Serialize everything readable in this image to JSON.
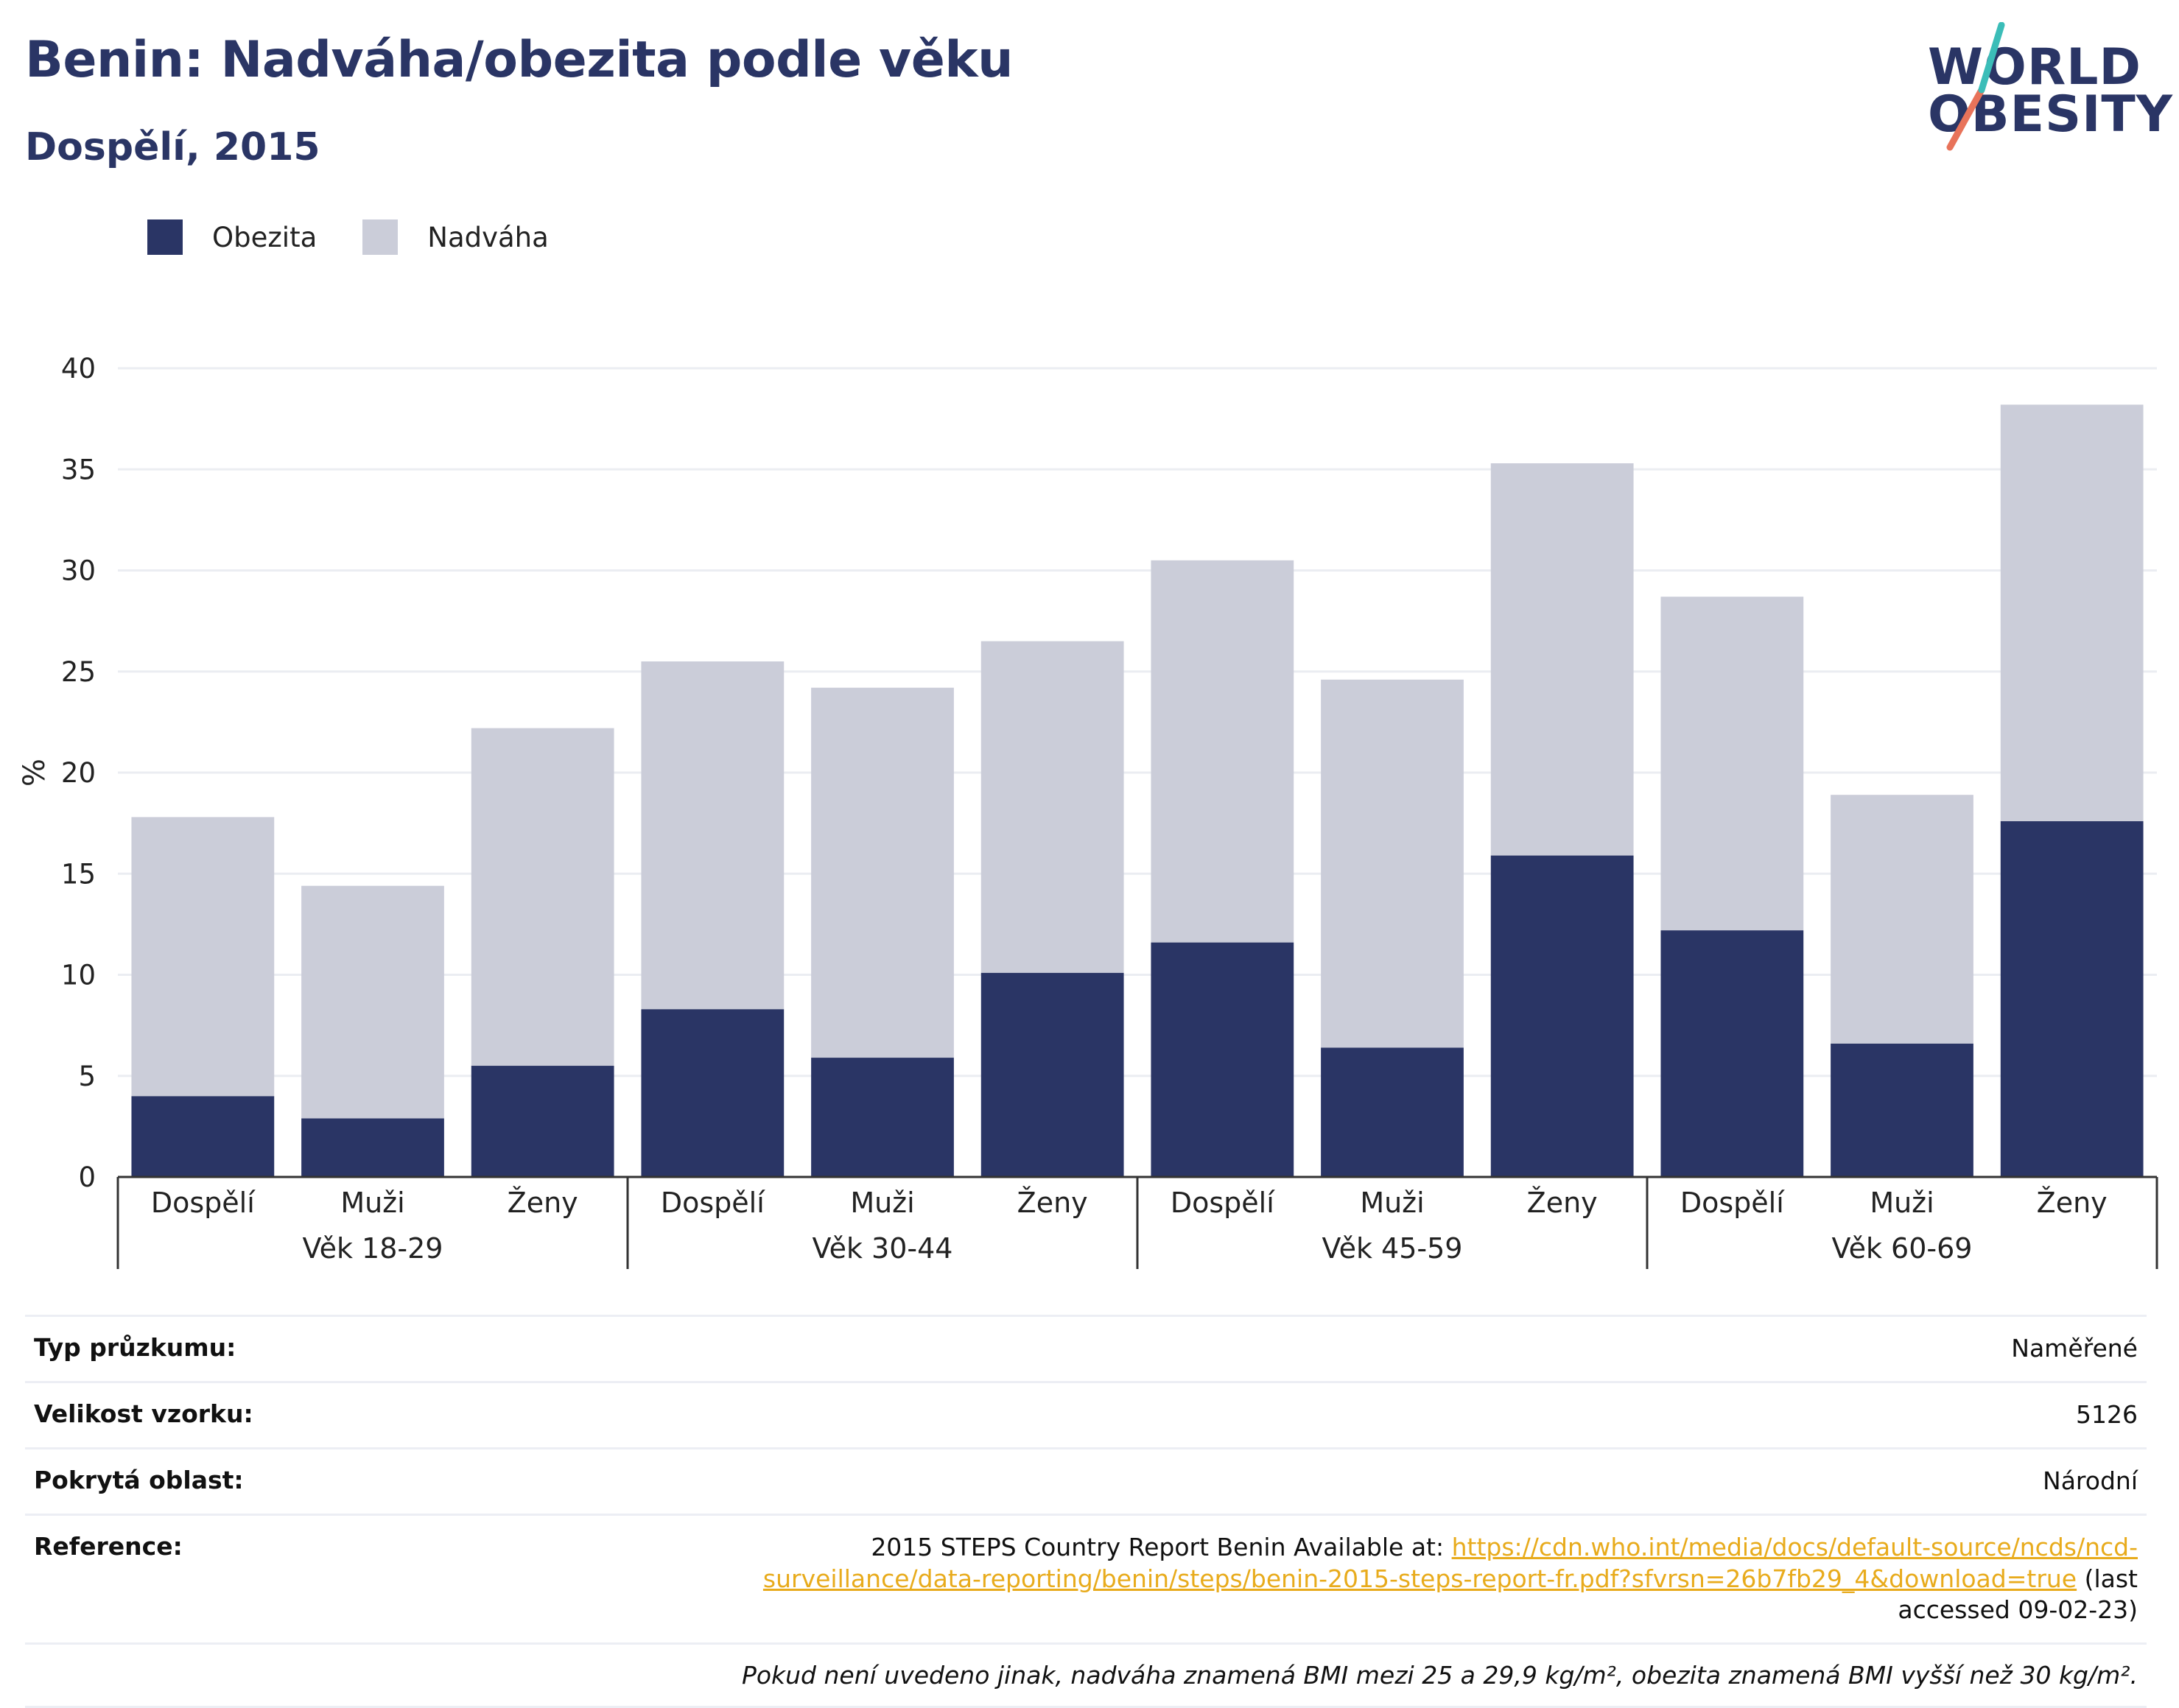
{
  "header": {
    "title": "Benin: Nadváha/obezita podle věku",
    "subtitle": "Dospělí, 2015"
  },
  "logo": {
    "line1": "WORLD",
    "line2": "OBESITY"
  },
  "legend": {
    "items": [
      {
        "label": "Obezita",
        "color": "#2a3565"
      },
      {
        "label": "Nadváha",
        "color": "#cbcdd9"
      }
    ]
  },
  "chart_data": {
    "type": "bar",
    "stacked": true,
    "ylabel": "%",
    "ylim": [
      0,
      40
    ],
    "yticks": [
      0,
      5,
      10,
      15,
      20,
      25,
      30,
      35,
      40
    ],
    "grid": true,
    "legend_position": "top-left",
    "groups": [
      "Věk 18-29",
      "Věk 30-44",
      "Věk 45-59",
      "Věk 60-69"
    ],
    "categories": [
      "Dospělí",
      "Muži",
      "Ženy",
      "Dospělí",
      "Muži",
      "Ženy",
      "Dospělí",
      "Muži",
      "Ženy",
      "Dospělí",
      "Muži",
      "Ženy"
    ],
    "series": [
      {
        "name": "Obezita",
        "color": "#2a3565",
        "values": [
          4.0,
          2.9,
          5.5,
          8.3,
          5.9,
          10.1,
          11.6,
          6.4,
          15.9,
          12.2,
          6.6,
          17.6
        ]
      },
      {
        "name": "Nadváha",
        "color": "#cbcdd9",
        "values": [
          13.8,
          11.5,
          16.7,
          17.2,
          18.3,
          16.4,
          18.9,
          18.2,
          19.4,
          16.5,
          12.3,
          20.6
        ]
      }
    ]
  },
  "info": {
    "survey_type_label": "Typ průzkumu:",
    "survey_type_value": "Naměřené",
    "sample_size_label": "Velikost vzorku:",
    "sample_size_value": "5126",
    "area_label": "Pokrytá oblast:",
    "area_value": "Národní",
    "reference_label": "Reference:",
    "reference_prefix": "2015 STEPS Country Report Benin Available at: ",
    "reference_link": "https://cdn.who.int/media/docs/default-source/ncds/ncd-surveillance/data-reporting/benin/steps/benin-2015-steps-report-fr.pdf?sfvrsn=26b7fb29_4&download=true",
    "reference_suffix": " (last accessed 09-02-23)",
    "note": "Pokud není uvedeno jinak, nadváha znamená BMI mezi 25 a 29,9 kg/m², obezita znamená BMI vyšší než 30 kg/m²."
  }
}
